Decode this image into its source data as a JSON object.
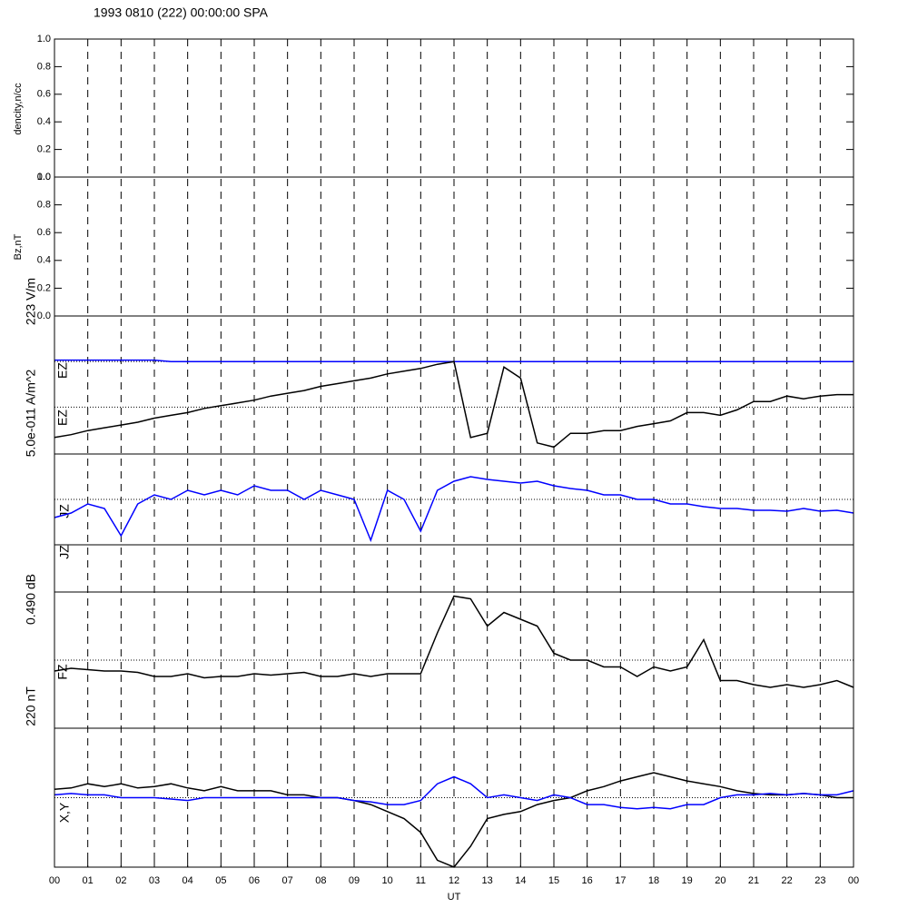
{
  "chart_data": [
    {
      "type": "line",
      "title": "1993 0810 (222) 00:00:00 SPA",
      "ylabel": "dencity,n/cc",
      "ylim": [
        0,
        1
      ],
      "yticks": [
        {
          "value": 0,
          "label": "0.0"
        },
        {
          "value": 0.2,
          "label": "0.2"
        },
        {
          "value": 0.4,
          "label": "0.4"
        },
        {
          "value": 0.6,
          "label": "0.6"
        },
        {
          "value": 0.8,
          "label": "0.8"
        },
        {
          "value": 1,
          "label": "1.0"
        }
      ]
    },
    {
      "type": "line",
      "ylabel": "Bz,nT",
      "ylim": [
        0,
        1
      ],
      "yticks": [
        {
          "value": 0,
          "label": "0.0"
        },
        {
          "value": 0.2,
          "label": "0.2"
        },
        {
          "value": 0.4,
          "label": "0.4"
        },
        {
          "value": 0.6,
          "label": "0.6"
        },
        {
          "value": 0.8,
          "label": "0.8"
        },
        {
          "value": 1,
          "label": "1.0"
        }
      ]
    },
    {
      "type": "line",
      "labels": [
        "223 V/m",
        "EZ",
        "EZ",
        "5.0e-011 A/m^2"
      ],
      "ylim": [
        0,
        1
      ],
      "xlim": [
        0,
        24
      ],
      "hlines": [
        0.67,
        0.34
      ],
      "x": [
        0,
        0.5,
        1,
        1.5,
        2,
        2.5,
        3,
        3.5,
        4,
        4.5,
        5,
        5.5,
        6,
        6.5,
        7,
        7.5,
        8,
        8.5,
        9,
        9.5,
        10,
        10.5,
        11,
        11.5,
        12,
        12.5,
        13,
        13.5,
        14,
        14.5,
        15,
        15.5,
        16,
        16.5,
        17,
        17.5,
        18,
        18.5,
        19,
        19.5,
        20,
        20.5,
        21,
        21.5,
        22,
        22.5,
        23,
        23.5,
        24
      ],
      "series": [
        {
          "color": "#0000ff",
          "values": [
            0.68,
            0.68,
            0.68,
            0.68,
            0.68,
            0.68,
            0.68,
            0.67,
            0.67,
            0.67,
            0.67,
            0.67,
            0.67,
            0.67,
            0.67,
            0.67,
            0.67,
            0.67,
            0.67,
            0.67,
            0.67,
            0.67,
            0.67,
            0.67,
            0.67,
            0.67,
            0.67,
            0.67,
            0.67,
            0.67,
            0.67,
            0.67,
            0.67,
            0.67,
            0.67,
            0.67,
            0.67,
            0.67,
            0.67,
            0.67,
            0.67,
            0.67,
            0.67,
            0.67,
            0.67,
            0.67,
            0.67,
            0.67,
            0.67
          ]
        },
        {
          "color": "#000000",
          "values": [
            0.12,
            0.14,
            0.17,
            0.19,
            0.21,
            0.23,
            0.26,
            0.28,
            0.3,
            0.33,
            0.35,
            0.37,
            0.39,
            0.42,
            0.44,
            0.46,
            0.49,
            0.51,
            0.53,
            0.55,
            0.58,
            0.6,
            0.62,
            0.65,
            0.67,
            0.12,
            0.15,
            0.63,
            0.55,
            0.08,
            0.05,
            0.15,
            0.15,
            0.17,
            0.17,
            0.2,
            0.22,
            0.24,
            0.3,
            0.3,
            0.28,
            0.32,
            0.38,
            0.38,
            0.42,
            0.4,
            0.42,
            0.43,
            0.43
          ]
        }
      ]
    },
    {
      "type": "line",
      "labels": [
        "JZ",
        "JZ",
        "0.490 dB"
      ],
      "ylim": [
        0,
        1
      ],
      "xlim": [
        0,
        24
      ],
      "hlines": [
        0.5
      ],
      "x": [
        0,
        0.5,
        1,
        1.5,
        2,
        2.5,
        3,
        3.5,
        4,
        4.5,
        5,
        5.5,
        6,
        6.5,
        7,
        7.5,
        8,
        8.5,
        9,
        9.5,
        10,
        10.5,
        11,
        11.5,
        12,
        12.5,
        13,
        13.5,
        14,
        14.5,
        15,
        15.5,
        16,
        16.5,
        17,
        17.5,
        18,
        18.5,
        19,
        19.5,
        20,
        20.5,
        21,
        21.5,
        22,
        22.5,
        23,
        23.5,
        24
      ],
      "series": [
        {
          "color": "#0000ff",
          "values": [
            0.3,
            0.35,
            0.45,
            0.4,
            0.1,
            0.45,
            0.55,
            0.5,
            0.6,
            0.55,
            0.6,
            0.55,
            0.65,
            0.6,
            0.6,
            0.5,
            0.6,
            0.55,
            0.5,
            0.05,
            0.6,
            0.5,
            0.15,
            0.6,
            0.7,
            0.75,
            0.72,
            0.7,
            0.68,
            0.7,
            0.65,
            0.62,
            0.6,
            0.55,
            0.55,
            0.5,
            0.5,
            0.45,
            0.45,
            0.42,
            0.4,
            0.4,
            0.38,
            0.38,
            0.37,
            0.4,
            0.37,
            0.38,
            0.35
          ]
        }
      ]
    },
    {
      "type": "line",
      "labels": [
        "FZ",
        "220 nT"
      ],
      "ylim": [
        0,
        1
      ],
      "xlim": [
        0,
        24
      ],
      "hlines": [
        0.5
      ],
      "x": [
        0,
        0.5,
        1,
        1.5,
        2,
        2.5,
        3,
        3.5,
        4,
        4.5,
        5,
        5.5,
        6,
        6.5,
        7,
        7.5,
        8,
        8.5,
        9,
        9.5,
        10,
        10.5,
        11,
        11.5,
        12,
        12.5,
        13,
        13.5,
        14,
        14.5,
        15,
        15.5,
        16,
        16.5,
        17,
        17.5,
        18,
        18.5,
        19,
        19.5,
        20,
        20.5,
        21,
        21.5,
        22,
        22.5,
        23,
        23.5,
        24
      ],
      "series": [
        {
          "color": "#000000",
          "values": [
            0.42,
            0.44,
            0.43,
            0.42,
            0.42,
            0.41,
            0.38,
            0.38,
            0.4,
            0.37,
            0.38,
            0.38,
            0.4,
            0.39,
            0.4,
            0.41,
            0.38,
            0.38,
            0.4,
            0.38,
            0.4,
            0.4,
            0.4,
            0.7,
            0.97,
            0.95,
            0.75,
            0.85,
            0.8,
            0.75,
            0.55,
            0.5,
            0.5,
            0.45,
            0.45,
            0.38,
            0.45,
            0.42,
            0.45,
            0.65,
            0.35,
            0.35,
            0.32,
            0.3,
            0.32,
            0.3,
            0.32,
            0.35,
            0.3
          ]
        }
      ]
    },
    {
      "type": "line",
      "labels": [
        "X,Y"
      ],
      "ylim": [
        0,
        1
      ],
      "xlim": [
        0,
        24
      ],
      "hlines": [
        0.5
      ],
      "xlabel": "UT",
      "xticks": [
        {
          "value": 0,
          "label": "00"
        },
        {
          "value": 1,
          "label": "01"
        },
        {
          "value": 2,
          "label": "02"
        },
        {
          "value": 3,
          "label": "03"
        },
        {
          "value": 4,
          "label": "04"
        },
        {
          "value": 5,
          "label": "05"
        },
        {
          "value": 6,
          "label": "06"
        },
        {
          "value": 7,
          "label": "07"
        },
        {
          "value": 8,
          "label": "08"
        },
        {
          "value": 9,
          "label": "09"
        },
        {
          "value": 10,
          "label": "10"
        },
        {
          "value": 11,
          "label": "11"
        },
        {
          "value": 12,
          "label": "12"
        },
        {
          "value": 13,
          "label": "13"
        },
        {
          "value": 14,
          "label": "14"
        },
        {
          "value": 15,
          "label": "15"
        },
        {
          "value": 16,
          "label": "16"
        },
        {
          "value": 17,
          "label": "17"
        },
        {
          "value": 18,
          "label": "18"
        },
        {
          "value": 19,
          "label": "19"
        },
        {
          "value": 20,
          "label": "20"
        },
        {
          "value": 21,
          "label": "21"
        },
        {
          "value": 22,
          "label": "22"
        },
        {
          "value": 23,
          "label": "23"
        },
        {
          "value": 24,
          "label": "00"
        }
      ],
      "x": [
        0,
        0.5,
        1,
        1.5,
        2,
        2.5,
        3,
        3.5,
        4,
        4.5,
        5,
        5.5,
        6,
        6.5,
        7,
        7.5,
        8,
        8.5,
        9,
        9.5,
        10,
        10.5,
        11,
        11.5,
        12,
        12.5,
        13,
        13.5,
        14,
        14.5,
        15,
        15.5,
        16,
        16.5,
        17,
        17.5,
        18,
        18.5,
        19,
        19.5,
        20,
        20.5,
        21,
        21.5,
        22,
        22.5,
        23,
        23.5,
        24
      ],
      "series": [
        {
          "color": "#000000",
          "values": [
            0.56,
            0.57,
            0.6,
            0.58,
            0.6,
            0.57,
            0.58,
            0.6,
            0.57,
            0.55,
            0.58,
            0.55,
            0.55,
            0.55,
            0.52,
            0.52,
            0.5,
            0.5,
            0.48,
            0.45,
            0.4,
            0.35,
            0.25,
            0.05,
            0.0,
            0.15,
            0.35,
            0.38,
            0.4,
            0.45,
            0.48,
            0.5,
            0.55,
            0.58,
            0.62,
            0.65,
            0.68,
            0.65,
            0.62,
            0.6,
            0.58,
            0.55,
            0.53,
            0.52,
            0.52,
            0.53,
            0.52,
            0.5,
            0.5
          ]
        },
        {
          "color": "#0000ff",
          "values": [
            0.52,
            0.53,
            0.52,
            0.52,
            0.5,
            0.5,
            0.5,
            0.49,
            0.48,
            0.5,
            0.5,
            0.5,
            0.5,
            0.5,
            0.5,
            0.5,
            0.5,
            0.5,
            0.48,
            0.47,
            0.45,
            0.45,
            0.48,
            0.6,
            0.65,
            0.6,
            0.5,
            0.52,
            0.5,
            0.48,
            0.52,
            0.5,
            0.45,
            0.45,
            0.43,
            0.42,
            0.43,
            0.42,
            0.45,
            0.45,
            0.5,
            0.52,
            0.52,
            0.53,
            0.52,
            0.53,
            0.52,
            0.52,
            0.55
          ]
        }
      ]
    }
  ]
}
